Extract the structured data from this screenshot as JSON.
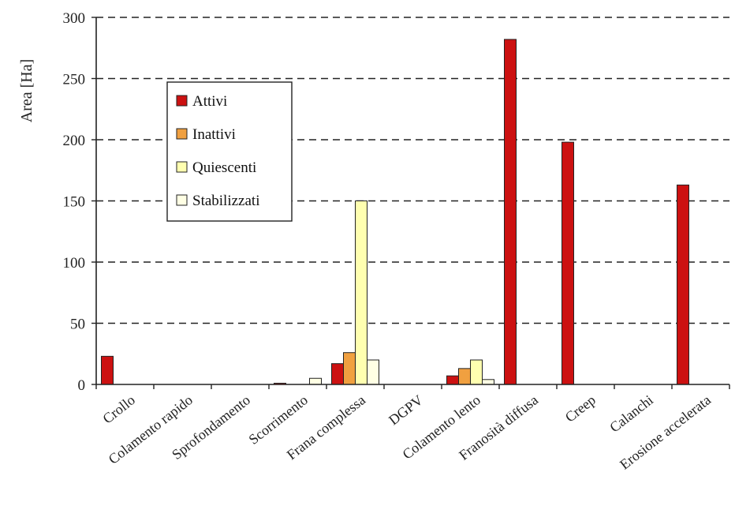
{
  "chart_data": {
    "type": "bar",
    "title": "",
    "xlabel": "",
    "ylabel": "Area [Ha]",
    "ylim": [
      0,
      300
    ],
    "yticks": [
      0,
      50,
      100,
      150,
      200,
      250,
      300
    ],
    "grid": "horizontal-dashed",
    "legend_position": "upper-left-inside",
    "categories": [
      "Crollo",
      "Colamento rapido",
      "Sprofondamento",
      "Scorrimento",
      "Frana complessa",
      "DGPV",
      "Colamento lento",
      "Franosità diffusa",
      "Creep",
      "Calanchi",
      "Erosione accelerata"
    ],
    "series": [
      {
        "name": "Attivi",
        "color": "#cc1111",
        "values": [
          23,
          0,
          0,
          1,
          17,
          0,
          7,
          282,
          198,
          0,
          163
        ]
      },
      {
        "name": "Inattivi",
        "color": "#f0a040",
        "values": [
          0,
          0,
          0,
          0,
          26,
          0,
          13,
          0,
          0,
          0,
          0
        ]
      },
      {
        "name": "Quiescenti",
        "color": "#ffffb0",
        "values": [
          0,
          0,
          0,
          0,
          150,
          0,
          20,
          0,
          0,
          0,
          0
        ]
      },
      {
        "name": "Stabilizzati",
        "color": "#ffffe4",
        "values": [
          0,
          0,
          0,
          5,
          20,
          0,
          4,
          0,
          0,
          0,
          0
        ]
      }
    ]
  }
}
